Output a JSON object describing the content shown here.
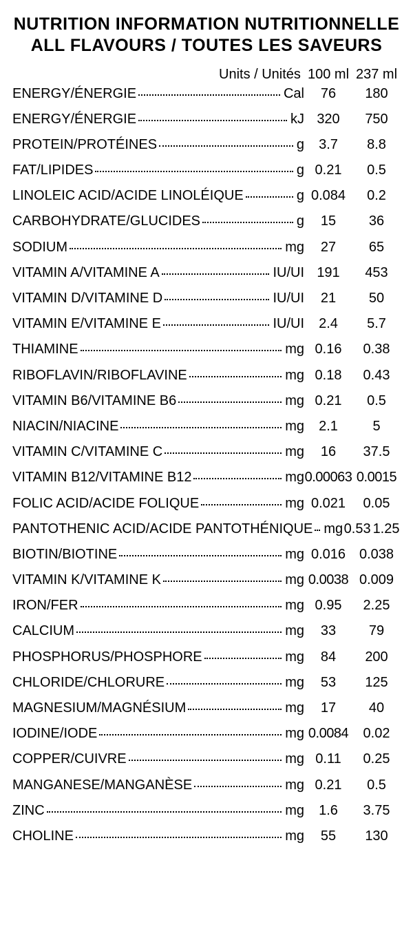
{
  "title_line1": "NUTRITION INFORMATION NUTRITIONNELLE",
  "title_line2": "ALL FLAVOURS / TOUTES LES SAVEURS",
  "header": {
    "units_label": "Units / Unités",
    "col1": "100 ml",
    "col2": "237 ml"
  },
  "rows": [
    {
      "label": "ENERGY/ÉNERGIE",
      "unit": "Cal",
      "v1": "76",
      "v2": "180"
    },
    {
      "label": "ENERGY/ÉNERGIE",
      "unit": "kJ",
      "v1": "320",
      "v2": "750"
    },
    {
      "label": "PROTEIN/PROTÉINES",
      "unit": "g",
      "v1": "3.7",
      "v2": "8.8"
    },
    {
      "label": "FAT/LIPIDES",
      "unit": "g",
      "v1": "0.21",
      "v2": "0.5"
    },
    {
      "label": "LINOLEIC ACID/ACIDE LINOLÉIQUE",
      "unit": "g",
      "v1": "0.084",
      "v2": "0.2"
    },
    {
      "label": "CARBOHYDRATE/GLUCIDES",
      "unit": "g",
      "v1": "15",
      "v2": "36"
    },
    {
      "label": "SODIUM",
      "unit": "mg",
      "v1": "27",
      "v2": "65"
    },
    {
      "label": "VITAMIN A/VITAMINE A",
      "unit": "IU/UI",
      "v1": "191",
      "v2": "453"
    },
    {
      "label": "VITAMIN D/VITAMINE D",
      "unit": "IU/UI",
      "v1": "21",
      "v2": "50"
    },
    {
      "label": "VITAMIN E/VITAMINE E",
      "unit": "IU/UI",
      "v1": "2.4",
      "v2": "5.7"
    },
    {
      "label": "THIAMINE",
      "unit": "mg",
      "v1": "0.16",
      "v2": "0.38"
    },
    {
      "label": "RIBOFLAVIN/RIBOFLAVINE",
      "unit": "mg",
      "v1": "0.18",
      "v2": "0.43"
    },
    {
      "label": "VITAMIN B6/VITAMINE B6",
      "unit": "mg",
      "v1": "0.21",
      "v2": "0.5"
    },
    {
      "label": "NIACIN/NIACINE",
      "unit": "mg",
      "v1": "2.1",
      "v2": "5"
    },
    {
      "label": "VITAMIN C/VITAMINE C",
      "unit": "mg",
      "v1": "16",
      "v2": "37.5"
    },
    {
      "label": "VITAMIN B12/VITAMINE B12",
      "unit": "mg",
      "v1": "0.00063",
      "v2": "0.0015"
    },
    {
      "label": "FOLIC ACID/ACIDE FOLIQUE",
      "unit": "mg",
      "v1": "0.021",
      "v2": "0.05"
    },
    {
      "label": "PANTOTHENIC ACID/ACIDE PANTOTHÉNIQUE",
      "unit": "mg",
      "v1": "0.53",
      "v2": "1.25"
    },
    {
      "label": "BIOTIN/BIOTINE",
      "unit": "mg",
      "v1": "0.016",
      "v2": "0.038"
    },
    {
      "label": "VITAMIN K/VITAMINE K",
      "unit": "mg",
      "v1": "0.0038",
      "v2": "0.009"
    },
    {
      "label": "IRON/FER",
      "unit": "mg",
      "v1": "0.95",
      "v2": "2.25"
    },
    {
      "label": "CALCIUM",
      "unit": "mg",
      "v1": "33",
      "v2": "79"
    },
    {
      "label": "PHOSPHORUS/PHOSPHORE",
      "unit": "mg",
      "v1": "84",
      "v2": "200"
    },
    {
      "label": "CHLORIDE/CHLORURE",
      "unit": "mg",
      "v1": "53",
      "v2": "125"
    },
    {
      "label": "MAGNESIUM/MAGNÉSIUM",
      "unit": "mg",
      "v1": "17",
      "v2": "40"
    },
    {
      "label": "IODINE/IODE",
      "unit": "mg",
      "v1": "0.0084",
      "v2": "0.02"
    },
    {
      "label": "COPPER/CUIVRE",
      "unit": "mg",
      "v1": "0.11",
      "v2": "0.25"
    },
    {
      "label": "MANGANESE/MANGANÈSE",
      "unit": "mg",
      "v1": "0.21",
      "v2": "0.5"
    },
    {
      "label": "ZINC",
      "unit": "mg",
      "v1": "1.6",
      "v2": "3.75"
    },
    {
      "label": "CHOLINE",
      "unit": "mg",
      "v1": "55",
      "v2": "130"
    }
  ]
}
